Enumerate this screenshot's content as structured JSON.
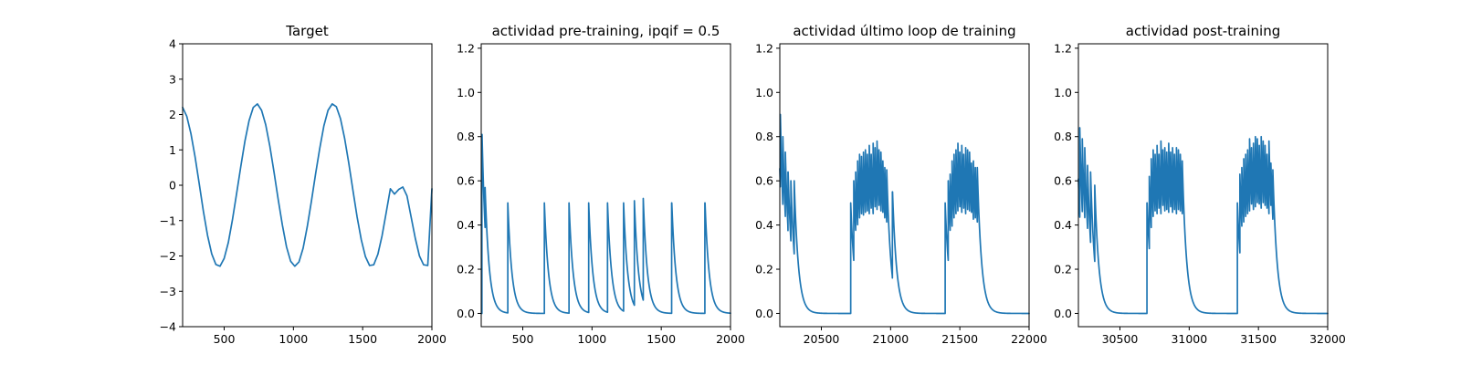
{
  "figure": {
    "background": "#ffffff",
    "line_color": "#1f77b4"
  },
  "chart_data": [
    {
      "type": "line",
      "title": "Target",
      "xlabel": "",
      "ylabel": "",
      "xlim": [
        200,
        2000
      ],
      "ylim": [
        -4,
        4
      ],
      "xticks": [
        500,
        1000,
        1500,
        2000
      ],
      "yticks": [
        -4,
        -3,
        -2,
        -1,
        0,
        1,
        2,
        3,
        4
      ],
      "xtick_labels": [
        "500",
        "1000",
        "1500",
        "2000"
      ],
      "ytick_labels": [
        "−4",
        "−3",
        "−2",
        "−1",
        "0",
        "1",
        "2",
        "3",
        "4"
      ],
      "grid": false,
      "series": [
        {
          "x": [
            200,
            230,
            260,
            290,
            320,
            350,
            380,
            410,
            440,
            470,
            500,
            530,
            560,
            590,
            620,
            650,
            680,
            710,
            740,
            770,
            800,
            830,
            860,
            890,
            920,
            950,
            980,
            1010,
            1040,
            1070,
            1100,
            1130,
            1160,
            1190,
            1220,
            1250,
            1280,
            1310,
            1340,
            1370,
            1400,
            1430,
            1460,
            1490,
            1520,
            1550,
            1580,
            1610,
            1640,
            1670,
            1700,
            1730,
            1760,
            1790,
            1820,
            1850,
            1880,
            1910,
            1940,
            1970,
            2000
          ],
          "y": [
            2.2,
            1.95,
            1.46,
            0.8,
            0.04,
            -0.74,
            -1.42,
            -1.94,
            -2.24,
            -2.29,
            -2.07,
            -1.62,
            -0.97,
            -0.23,
            0.53,
            1.25,
            1.83,
            2.2,
            2.3,
            2.12,
            1.71,
            1.1,
            0.37,
            -0.4,
            -1.12,
            -1.74,
            -2.15,
            -2.29,
            -2.17,
            -1.78,
            -1.17,
            -0.45,
            0.32,
            1.04,
            1.68,
            2.12,
            2.3,
            2.22,
            1.88,
            1.32,
            0.62,
            -0.15,
            -0.9,
            -1.54,
            -2.02,
            -2.27,
            -2.25,
            -1.95,
            -1.43,
            -0.77,
            -0.1,
            -0.25,
            -0.12,
            -0.05,
            -0.3,
            -0.9,
            -1.5,
            -2.0,
            -2.25,
            -2.27,
            -0.1
          ]
        }
      ]
    },
    {
      "type": "line",
      "title": "actividad pre-training, ipqif = 0.5",
      "xlabel": "",
      "ylabel": "",
      "xlim": [
        200,
        2000
      ],
      "ylim": [
        -0.06,
        1.22
      ],
      "xticks": [
        500,
        1000,
        1500,
        2000
      ],
      "yticks": [
        0.0,
        0.2,
        0.4,
        0.6,
        0.8,
        1.0,
        1.2
      ],
      "xtick_labels": [
        "500",
        "1000",
        "1500",
        "2000"
      ],
      "ytick_labels": [
        "0.0",
        "0.2",
        "0.4",
        "0.6",
        "0.8",
        "1.0",
        "1.2"
      ],
      "grid": false,
      "spikes": {
        "start": 200,
        "end": 2000,
        "initial": 0.0,
        "tau": 30,
        "times": [
          205,
          228,
          392,
          656,
          834,
          976,
          1112,
          1228,
          1306,
          1370,
          1575,
          1815
        ],
        "peaks": [
          0.81,
          0.57,
          0.5,
          0.5,
          0.5,
          0.5,
          0.5,
          0.5,
          0.51,
          0.52,
          0.5,
          0.5
        ]
      }
    },
    {
      "type": "line",
      "title": "actividad último loop de training",
      "xlabel": "",
      "ylabel": "",
      "xlim": [
        20200,
        22000
      ],
      "ylim": [
        -0.06,
        1.22
      ],
      "xticks": [
        20500,
        21000,
        21500,
        22000
      ],
      "yticks": [
        0.0,
        0.2,
        0.4,
        0.6,
        0.8,
        1.0,
        1.2
      ],
      "xtick_labels": [
        "20500",
        "21000",
        "21500",
        "22000"
      ],
      "ytick_labels": [
        "0.0",
        "0.2",
        "0.4",
        "0.6",
        "0.8",
        "1.0",
        "1.2"
      ],
      "grid": false,
      "spikes": {
        "start": 20200,
        "end": 22000,
        "initial": 0.7,
        "tau": 30,
        "times": [
          20204,
          20222,
          20240,
          20259,
          20280,
          20304,
          20712,
          20734,
          20748,
          20762,
          20776,
          20790,
          20804,
          20818,
          20832,
          20846,
          20860,
          20874,
          20888,
          20902,
          20916,
          20930,
          20944,
          20958,
          20972,
          21013,
          21394,
          21416,
          21430,
          21444,
          21458,
          21472,
          21486,
          21500,
          21514,
          21528,
          21542,
          21556,
          21570,
          21584,
          21598,
          21612,
          21626
        ],
        "peaks": [
          0.9,
          0.8,
          0.73,
          0.64,
          0.6,
          0.6,
          0.5,
          0.6,
          0.64,
          0.69,
          0.72,
          0.71,
          0.73,
          0.74,
          0.72,
          0.76,
          0.72,
          0.77,
          0.75,
          0.78,
          0.74,
          0.73,
          0.69,
          0.66,
          0.65,
          0.55,
          0.5,
          0.6,
          0.63,
          0.69,
          0.72,
          0.74,
          0.77,
          0.73,
          0.76,
          0.72,
          0.75,
          0.74,
          0.73,
          0.68,
          0.69,
          0.66,
          0.66
        ]
      }
    },
    {
      "type": "line",
      "title": "actividad post-training",
      "xlabel": "",
      "ylabel": "",
      "xlim": [
        30200,
        32000
      ],
      "ylim": [
        -0.06,
        1.22
      ],
      "xticks": [
        30500,
        31000,
        31500,
        32000
      ],
      "yticks": [
        0.0,
        0.2,
        0.4,
        0.6,
        0.8,
        1.0,
        1.2
      ],
      "xtick_labels": [
        "30500",
        "31000",
        "31500",
        "32000"
      ],
      "ytick_labels": [
        "0.0",
        "0.2",
        "0.4",
        "0.6",
        "0.8",
        "1.0",
        "1.2"
      ],
      "grid": false,
      "spikes": {
        "start": 30200,
        "end": 32000,
        "initial": 0.65,
        "tau": 30,
        "times": [
          30210,
          30228,
          30246,
          30266,
          30288,
          30318,
          30695,
          30712,
          30726,
          30740,
          30754,
          30768,
          30782,
          30796,
          30810,
          30824,
          30838,
          30852,
          30866,
          30880,
          30894,
          30908,
          30922,
          30936,
          30950,
          31348,
          31366,
          31380,
          31394,
          31408,
          31422,
          31436,
          31450,
          31464,
          31478,
          31492,
          31506,
          31520,
          31534,
          31548,
          31562,
          31576,
          31590,
          31604
        ],
        "peaks": [
          0.84,
          0.79,
          0.75,
          0.67,
          0.64,
          0.58,
          0.5,
          0.62,
          0.7,
          0.74,
          0.72,
          0.76,
          0.72,
          0.78,
          0.74,
          0.75,
          0.73,
          0.77,
          0.73,
          0.75,
          0.72,
          0.75,
          0.74,
          0.72,
          0.69,
          0.5,
          0.63,
          0.66,
          0.7,
          0.72,
          0.74,
          0.79,
          0.75,
          0.77,
          0.8,
          0.79,
          0.76,
          0.8,
          0.78,
          0.76,
          0.72,
          0.78,
          0.68,
          0.65
        ]
      }
    }
  ]
}
